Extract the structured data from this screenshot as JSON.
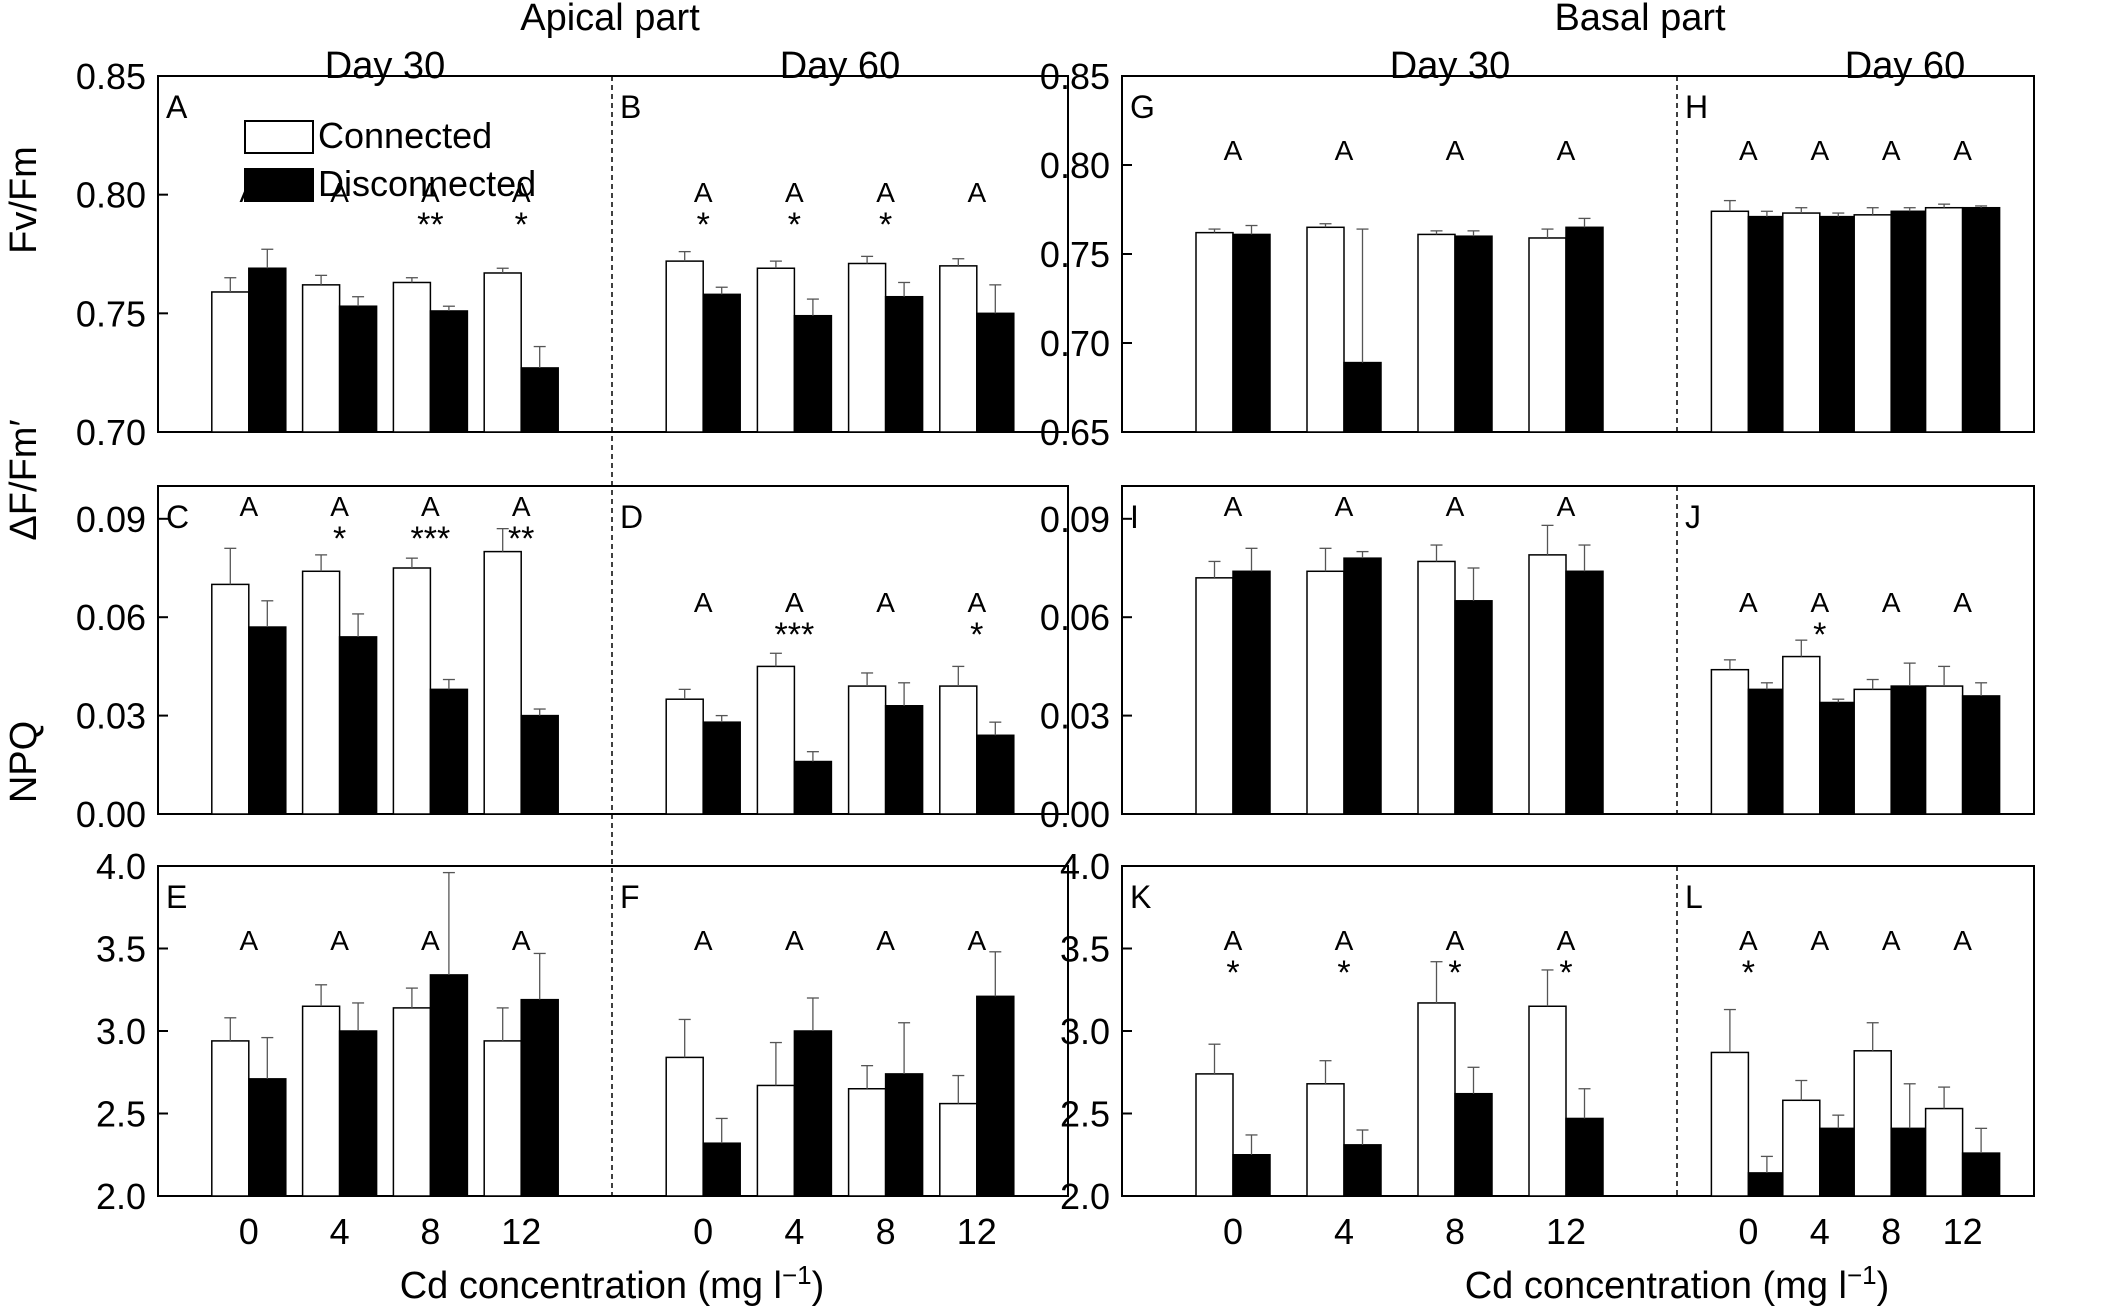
{
  "figure": {
    "headers": {
      "apical": "Apical part",
      "basal": "Basal part",
      "day30": "Day 30",
      "day60": "Day 60"
    },
    "xlabel_prefix": "Cd concentration (mg l",
    "xlabel_sup": "−1",
    "xlabel_suffix": ")",
    "ylabels": [
      "Fv/Fm",
      "ΔF/Fm′",
      "NPQ"
    ],
    "legend": [
      "Connected",
      "Disconnected"
    ],
    "colors": {
      "connected": "#ffffff",
      "disconnected": "#000000",
      "stroke": "#000000",
      "error_bar": "#555555"
    }
  },
  "chart_data": {
    "type": "bar",
    "categories": [
      "0",
      "4",
      "8",
      "12"
    ],
    "series_names": [
      "Connected",
      "Disconnected"
    ],
    "rows": [
      {
        "ylabel": "Fv/Fm",
        "apical": {
          "ylim": [
            0.7,
            0.85
          ],
          "ticks": [
            "0.70",
            "0.75",
            "0.80",
            "0.85"
          ],
          "tickvals": [
            0.7,
            0.75,
            0.8,
            0.85
          ],
          "panels": [
            {
              "letter": "A",
              "connected": [
                0.759,
                0.762,
                0.763,
                0.767
              ],
              "connected_err": [
                0.006,
                0.004,
                0.002,
                0.002
              ],
              "disconnected": [
                0.769,
                0.753,
                0.751,
                0.727
              ],
              "disconnected_err": [
                0.008,
                0.004,
                0.002,
                0.009
              ],
              "letters": [
                "A",
                "A",
                "A",
                "A"
              ],
              "stars": [
                "",
                "",
                "**",
                "*"
              ]
            },
            {
              "letter": "B",
              "connected": [
                0.772,
                0.769,
                0.771,
                0.77
              ],
              "connected_err": [
                0.004,
                0.003,
                0.003,
                0.003
              ],
              "disconnected": [
                0.758,
                0.749,
                0.757,
                0.75
              ],
              "disconnected_err": [
                0.003,
                0.007,
                0.006,
                0.012
              ],
              "letters": [
                "A",
                "A",
                "A",
                "A"
              ],
              "stars": [
                "*",
                "*",
                "*",
                ""
              ]
            }
          ]
        },
        "basal": {
          "ylim": [
            0.65,
            0.85
          ],
          "ticks": [
            "0.65",
            "0.70",
            "0.75",
            "0.80",
            "0.85"
          ],
          "tickvals": [
            0.65,
            0.7,
            0.75,
            0.8,
            0.85
          ],
          "panels": [
            {
              "letter": "G",
              "connected": [
                0.762,
                0.765,
                0.761,
                0.759
              ],
              "connected_err": [
                0.002,
                0.002,
                0.002,
                0.005
              ],
              "disconnected": [
                0.761,
                0.689,
                0.76,
                0.765
              ],
              "disconnected_err": [
                0.005,
                0.075,
                0.003,
                0.005
              ],
              "letters": [
                "A",
                "A",
                "A",
                "A"
              ],
              "stars": [
                "",
                "",
                "",
                ""
              ]
            },
            {
              "letter": "H",
              "connected": [
                0.774,
                0.773,
                0.772,
                0.776
              ],
              "connected_err": [
                0.006,
                0.003,
                0.004,
                0.002
              ],
              "disconnected": [
                0.771,
                0.771,
                0.774,
                0.776
              ],
              "disconnected_err": [
                0.003,
                0.002,
                0.002,
                0.001
              ],
              "letters": [
                "A",
                "A",
                "A",
                "A"
              ],
              "stars": [
                "",
                "",
                "",
                ""
              ]
            }
          ]
        }
      },
      {
        "ylabel": "ΔF/Fm′",
        "apical": {
          "ylim": [
            0.0,
            0.1
          ],
          "ticks": [
            "0.00",
            "0.03",
            "0.06",
            "0.09"
          ],
          "tickvals": [
            0.0,
            0.03,
            0.06,
            0.09
          ],
          "panels": [
            {
              "letter": "C",
              "connected": [
                0.07,
                0.074,
                0.075,
                0.08
              ],
              "connected_err": [
                0.011,
                0.005,
                0.003,
                0.007
              ],
              "disconnected": [
                0.057,
                0.054,
                0.038,
                0.03
              ],
              "disconnected_err": [
                0.008,
                0.007,
                0.003,
                0.002
              ],
              "letters": [
                "A",
                "A",
                "A",
                "A"
              ],
              "stars": [
                "",
                "*",
                "***",
                "**"
              ]
            },
            {
              "letter": "D",
              "connected": [
                0.035,
                0.045,
                0.039,
                0.039
              ],
              "connected_err": [
                0.003,
                0.004,
                0.004,
                0.006
              ],
              "disconnected": [
                0.028,
                0.016,
                0.033,
                0.024
              ],
              "disconnected_err": [
                0.002,
                0.003,
                0.007,
                0.004
              ],
              "letters": [
                "A",
                "A",
                "A",
                "A"
              ],
              "stars": [
                "",
                "***",
                "",
                "*"
              ]
            }
          ]
        },
        "basal": {
          "ylim": [
            0.0,
            0.1
          ],
          "ticks": [
            "0.00",
            "0.03",
            "0.06",
            "0.09"
          ],
          "tickvals": [
            0.0,
            0.03,
            0.06,
            0.09
          ],
          "panels": [
            {
              "letter": "I",
              "connected": [
                0.072,
                0.074,
                0.077,
                0.079
              ],
              "connected_err": [
                0.005,
                0.007,
                0.005,
                0.009
              ],
              "disconnected": [
                0.074,
                0.078,
                0.065,
                0.074
              ],
              "disconnected_err": [
                0.007,
                0.002,
                0.01,
                0.008
              ],
              "letters": [
                "A",
                "A",
                "A",
                "A"
              ],
              "stars": [
                "",
                "",
                "",
                ""
              ]
            },
            {
              "letter": "J",
              "connected": [
                0.044,
                0.048,
                0.038,
                0.039
              ],
              "connected_err": [
                0.003,
                0.005,
                0.003,
                0.006
              ],
              "disconnected": [
                0.038,
                0.034,
                0.039,
                0.036
              ],
              "disconnected_err": [
                0.002,
                0.001,
                0.007,
                0.004
              ],
              "letters": [
                "A",
                "A",
                "A",
                "A"
              ],
              "stars": [
                "",
                "*",
                "",
                ""
              ]
            }
          ]
        }
      },
      {
        "ylabel": "NPQ",
        "apical": {
          "ylim": [
            2.0,
            4.0
          ],
          "ticks": [
            "2.0",
            "2.5",
            "3.0",
            "3.5",
            "4.0"
          ],
          "tickvals": [
            2.0,
            2.5,
            3.0,
            3.5,
            4.0
          ],
          "panels": [
            {
              "letter": "E",
              "connected": [
                2.94,
                3.15,
                3.14,
                2.94
              ],
              "connected_err": [
                0.14,
                0.13,
                0.12,
                0.2
              ],
              "disconnected": [
                2.71,
                3.0,
                3.34,
                3.19
              ],
              "disconnected_err": [
                0.25,
                0.17,
                0.62,
                0.28
              ],
              "letters": [
                "A",
                "A",
                "A",
                "A"
              ],
              "stars": [
                "",
                "",
                "",
                ""
              ]
            },
            {
              "letter": "F",
              "connected": [
                2.84,
                2.67,
                2.65,
                2.56
              ],
              "connected_err": [
                0.23,
                0.26,
                0.14,
                0.17
              ],
              "disconnected": [
                2.32,
                3.0,
                2.74,
                3.21
              ],
              "disconnected_err": [
                0.15,
                0.2,
                0.31,
                0.27
              ],
              "letters": [
                "A",
                "A",
                "A",
                "A"
              ],
              "stars": [
                "",
                "",
                "",
                ""
              ]
            }
          ]
        },
        "basal": {
          "ylim": [
            2.0,
            4.0
          ],
          "ticks": [
            "2.0",
            "2.5",
            "3.0",
            "3.5",
            "4.0"
          ],
          "tickvals": [
            2.0,
            2.5,
            3.0,
            3.5,
            4.0
          ],
          "panels": [
            {
              "letter": "K",
              "connected": [
                2.74,
                2.68,
                3.17,
                3.15
              ],
              "connected_err": [
                0.18,
                0.14,
                0.25,
                0.22
              ],
              "disconnected": [
                2.25,
                2.31,
                2.62,
                2.47
              ],
              "disconnected_err": [
                0.12,
                0.09,
                0.16,
                0.18
              ],
              "letters": [
                "A",
                "A",
                "A",
                "A"
              ],
              "stars": [
                "*",
                "*",
                "*",
                "*"
              ]
            },
            {
              "letter": "L",
              "connected": [
                2.87,
                2.58,
                2.88,
                2.53
              ],
              "connected_err": [
                0.26,
                0.12,
                0.17,
                0.13
              ],
              "disconnected": [
                2.14,
                2.41,
                2.41,
                2.26
              ],
              "disconnected_err": [
                0.1,
                0.08,
                0.27,
                0.15
              ],
              "letters": [
                "A",
                "A",
                "A",
                "A"
              ],
              "stars": [
                "*",
                "",
                "",
                ""
              ]
            }
          ]
        }
      }
    ]
  }
}
